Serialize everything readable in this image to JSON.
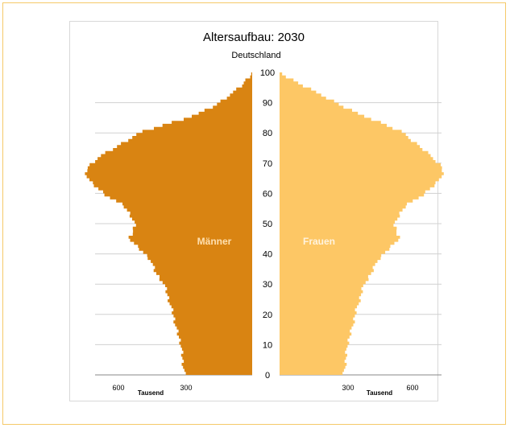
{
  "chart_data": {
    "type": "population-pyramid",
    "title": "Altersaufbau: 2030",
    "subtitle": "Deutschland",
    "xlabel": "Tausend",
    "x_ticks": [
      600,
      300
    ],
    "y_ticks": [
      0,
      10,
      20,
      30,
      40,
      50,
      60,
      70,
      80,
      90,
      100
    ],
    "ylim": [
      0,
      100
    ],
    "xlim": [
      0,
      750
    ],
    "grid": "horizontal",
    "colors": {
      "maenner": "#d98412",
      "frauen": "#fdc765"
    },
    "series": [
      {
        "name": "Männer",
        "age": [
          0,
          3,
          6,
          10,
          15,
          20,
          25,
          30,
          34,
          38,
          41,
          43,
          45,
          47,
          50,
          53,
          56,
          59,
          62,
          64,
          66,
          68,
          70,
          72,
          75,
          78,
          80,
          82,
          84,
          86,
          88,
          90,
          92,
          95,
          98,
          100
        ],
        "values": [
          300,
          305,
          310,
          315,
          335,
          350,
          370,
          390,
          430,
          450,
          490,
          520,
          545,
          530,
          520,
          540,
          570,
          640,
          690,
          720,
          735,
          735,
          710,
          680,
          610,
          545,
          500,
          420,
          330,
          250,
          190,
          145,
          110,
          55,
          20,
          2
        ]
      },
      {
        "name": "Frauen",
        "age": [
          0,
          3,
          6,
          10,
          15,
          20,
          25,
          30,
          34,
          38,
          41,
          43,
          45,
          47,
          50,
          53,
          56,
          59,
          62,
          64,
          66,
          68,
          70,
          72,
          75,
          78,
          80,
          82,
          84,
          86,
          88,
          90,
          92,
          95,
          98,
          100
        ],
        "values": [
          285,
          290,
          295,
          300,
          320,
          335,
          355,
          375,
          410,
          435,
          475,
          505,
          530,
          520,
          510,
          530,
          560,
          625,
          675,
          705,
          720,
          725,
          705,
          675,
          630,
          580,
          550,
          490,
          430,
          360,
          300,
          250,
          200,
          120,
          45,
          3
        ]
      }
    ]
  }
}
